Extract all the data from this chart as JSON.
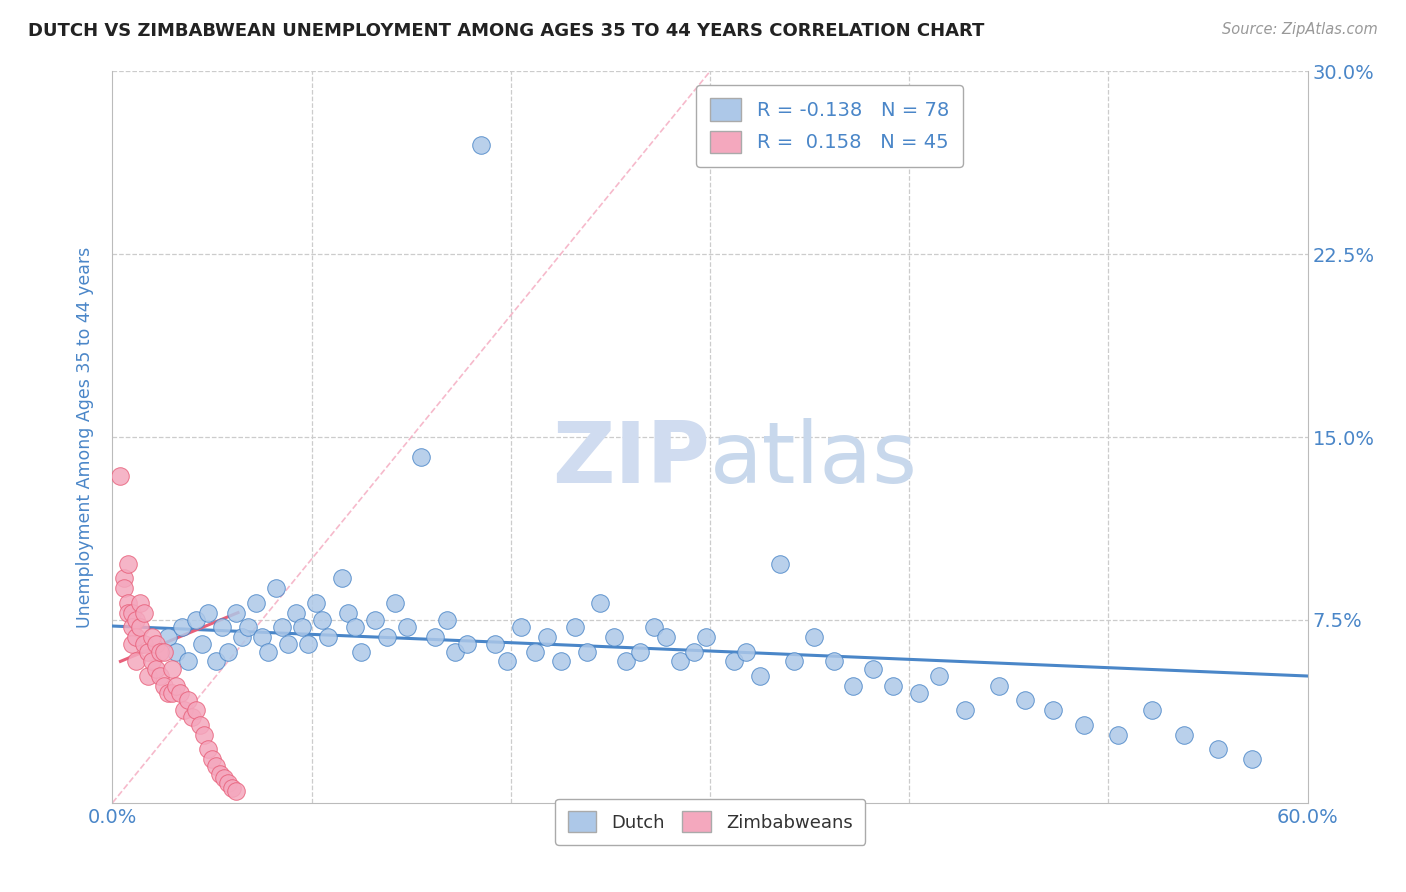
{
  "title": "DUTCH VS ZIMBABWEAN UNEMPLOYMENT AMONG AGES 35 TO 44 YEARS CORRELATION CHART",
  "source_text": "Source: ZipAtlas.com",
  "ylabel": "Unemployment Among Ages 35 to 44 years",
  "xlim": [
    0.0,
    0.6
  ],
  "ylim": [
    0.0,
    0.3
  ],
  "dutch_R": -0.138,
  "dutch_N": 78,
  "zimbabwe_R": 0.158,
  "zimbabwe_N": 45,
  "dutch_color": "#adc8e8",
  "zimbabwe_color": "#f4a8be",
  "dutch_line_color": "#4a86c8",
  "zimbabwe_line_color": "#e8607a",
  "diagonal_color": "#f4a8be",
  "watermark_zip_color": "#d8e4f4",
  "watermark_atlas_color": "#c8d8f0",
  "title_color": "#222222",
  "axis_label_color": "#4a86c8",
  "tick_color": "#4a86c8",
  "legend_text_color": "#4a86c8",
  "dutch_x": [
    0.028,
    0.032,
    0.035,
    0.038,
    0.042,
    0.045,
    0.048,
    0.052,
    0.055,
    0.058,
    0.062,
    0.065,
    0.068,
    0.072,
    0.075,
    0.078,
    0.082,
    0.085,
    0.088,
    0.092,
    0.095,
    0.098,
    0.102,
    0.105,
    0.108,
    0.115,
    0.118,
    0.122,
    0.125,
    0.132,
    0.138,
    0.142,
    0.148,
    0.155,
    0.162,
    0.168,
    0.172,
    0.178,
    0.185,
    0.192,
    0.198,
    0.205,
    0.212,
    0.218,
    0.225,
    0.232,
    0.238,
    0.245,
    0.252,
    0.258,
    0.265,
    0.272,
    0.278,
    0.285,
    0.292,
    0.298,
    0.312,
    0.318,
    0.325,
    0.335,
    0.342,
    0.352,
    0.362,
    0.372,
    0.382,
    0.392,
    0.405,
    0.415,
    0.428,
    0.445,
    0.458,
    0.472,
    0.488,
    0.505,
    0.522,
    0.538,
    0.555,
    0.572
  ],
  "dutch_y": [
    0.068,
    0.062,
    0.072,
    0.058,
    0.075,
    0.065,
    0.078,
    0.058,
    0.072,
    0.062,
    0.078,
    0.068,
    0.072,
    0.082,
    0.068,
    0.062,
    0.088,
    0.072,
    0.065,
    0.078,
    0.072,
    0.065,
    0.082,
    0.075,
    0.068,
    0.092,
    0.078,
    0.072,
    0.062,
    0.075,
    0.068,
    0.082,
    0.072,
    0.142,
    0.068,
    0.075,
    0.062,
    0.065,
    0.27,
    0.065,
    0.058,
    0.072,
    0.062,
    0.068,
    0.058,
    0.072,
    0.062,
    0.082,
    0.068,
    0.058,
    0.062,
    0.072,
    0.068,
    0.058,
    0.062,
    0.068,
    0.058,
    0.062,
    0.052,
    0.098,
    0.058,
    0.068,
    0.058,
    0.048,
    0.055,
    0.048,
    0.045,
    0.052,
    0.038,
    0.048,
    0.042,
    0.038,
    0.032,
    0.028,
    0.038,
    0.028,
    0.022,
    0.018
  ],
  "zimbabwe_x": [
    0.004,
    0.006,
    0.006,
    0.008,
    0.008,
    0.008,
    0.01,
    0.01,
    0.01,
    0.012,
    0.012,
    0.012,
    0.014,
    0.014,
    0.016,
    0.016,
    0.018,
    0.018,
    0.02,
    0.02,
    0.022,
    0.022,
    0.024,
    0.024,
    0.026,
    0.026,
    0.028,
    0.03,
    0.03,
    0.032,
    0.034,
    0.036,
    0.038,
    0.04,
    0.042,
    0.044,
    0.046,
    0.048,
    0.05,
    0.052,
    0.054,
    0.056,
    0.058,
    0.06,
    0.062
  ],
  "zimbabwe_y": [
    0.134,
    0.092,
    0.088,
    0.098,
    0.082,
    0.078,
    0.078,
    0.072,
    0.065,
    0.075,
    0.068,
    0.058,
    0.082,
    0.072,
    0.078,
    0.065,
    0.062,
    0.052,
    0.068,
    0.058,
    0.065,
    0.055,
    0.062,
    0.052,
    0.062,
    0.048,
    0.045,
    0.055,
    0.045,
    0.048,
    0.045,
    0.038,
    0.042,
    0.035,
    0.038,
    0.032,
    0.028,
    0.022,
    0.018,
    0.015,
    0.012,
    0.01,
    0.008,
    0.006,
    0.005
  ],
  "dutch_trend_x0": 0.0,
  "dutch_trend_x1": 0.6,
  "dutch_trend_y0": 0.0725,
  "dutch_trend_y1": 0.052,
  "zim_trend_x0": 0.004,
  "zim_trend_x1": 0.063,
  "zim_trend_y0": 0.058,
  "zim_trend_y1": 0.078
}
